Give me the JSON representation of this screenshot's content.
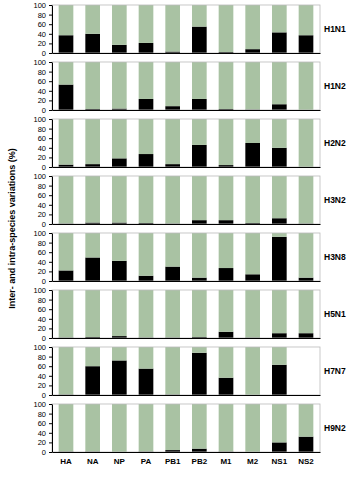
{
  "chart_data": [
    {
      "type": "bar",
      "stacked": true,
      "title": "H1N1",
      "ylabel": "Inter- and intra-species variations (%)",
      "categories": [
        "HA",
        "NA",
        "NP",
        "PA",
        "PB1",
        "PB2",
        "M1",
        "M2",
        "NS1",
        "NS2"
      ],
      "series": [
        {
          "color": "#000000",
          "values": [
            37,
            40,
            17,
            21,
            3,
            55,
            2,
            8,
            43,
            37
          ]
        },
        {
          "color": "#a9c2a3",
          "values": [
            63,
            60,
            83,
            79,
            97,
            45,
            98,
            92,
            57,
            63
          ]
        }
      ],
      "ylim": [
        0,
        100
      ],
      "yticks": [
        0,
        20,
        40,
        60,
        80,
        100
      ],
      "tick_labels": "y"
    },
    {
      "type": "bar",
      "stacked": true,
      "title": "H1N2",
      "categories": [
        "HA",
        "NA",
        "NP",
        "PA",
        "PB1",
        "PB2",
        "M1",
        "M2",
        "NS1",
        "NS2"
      ],
      "series": [
        {
          "color": "#000000",
          "values": [
            53,
            2,
            3,
            23,
            8,
            23,
            2,
            1,
            12,
            0
          ]
        },
        {
          "color": "#a9c2a3",
          "values": [
            47,
            98,
            97,
            77,
            92,
            77,
            98,
            99,
            88,
            100
          ]
        }
      ],
      "ylim": [
        0,
        100
      ],
      "yticks": [
        0,
        20,
        40,
        60,
        80,
        100
      ],
      "tick_labels": "y"
    },
    {
      "type": "bar",
      "stacked": true,
      "title": "H2N2",
      "categories": [
        "HA",
        "NA",
        "NP",
        "PA",
        "PB1",
        "PB2",
        "M1",
        "M2",
        "NS1",
        "NS2"
      ],
      "series": [
        {
          "color": "#000000",
          "values": [
            5,
            6,
            18,
            27,
            6,
            46,
            4,
            50,
            40,
            0
          ]
        },
        {
          "color": "#a9c2a3",
          "values": [
            95,
            94,
            82,
            73,
            94,
            54,
            96,
            50,
            60,
            100
          ]
        }
      ],
      "ylim": [
        0,
        100
      ],
      "yticks": [
        0,
        20,
        40,
        60,
        80,
        100
      ],
      "tick_labels": "y"
    },
    {
      "type": "bar",
      "stacked": true,
      "title": "H3N2",
      "categories": [
        "HA",
        "NA",
        "NP",
        "PA",
        "PB1",
        "PB2",
        "M1",
        "M2",
        "NS1",
        "NS2"
      ],
      "series": [
        {
          "color": "#000000",
          "values": [
            1,
            3,
            3,
            2,
            1,
            8,
            8,
            2,
            12,
            1
          ]
        },
        {
          "color": "#a9c2a3",
          "values": [
            99,
            97,
            97,
            98,
            99,
            92,
            92,
            98,
            88,
            99
          ]
        }
      ],
      "ylim": [
        0,
        100
      ],
      "yticks": [
        0,
        20,
        40,
        60,
        80,
        100
      ],
      "tick_labels": "y"
    },
    {
      "type": "bar",
      "stacked": true,
      "title": "H3N8",
      "categories": [
        "HA",
        "NA",
        "NP",
        "PA",
        "PB1",
        "PB2",
        "M1",
        "M2",
        "NS1",
        "NS2"
      ],
      "series": [
        {
          "color": "#000000",
          "values": [
            22,
            49,
            42,
            11,
            30,
            7,
            27,
            14,
            92,
            7
          ]
        },
        {
          "color": "#a9c2a3",
          "values": [
            78,
            51,
            58,
            89,
            70,
            93,
            73,
            86,
            8,
            93
          ]
        }
      ],
      "ylim": [
        0,
        100
      ],
      "yticks": [
        0,
        20,
        40,
        60,
        80,
        100
      ],
      "tick_labels": "y"
    },
    {
      "type": "bar",
      "stacked": true,
      "title": "H5N1",
      "categories": [
        "HA",
        "NA",
        "NP",
        "PA",
        "PB1",
        "PB2",
        "M1",
        "M2",
        "NS1",
        "NS2"
      ],
      "series": [
        {
          "color": "#000000",
          "values": [
            1,
            2,
            4,
            1,
            1,
            2,
            13,
            1,
            10,
            10
          ]
        },
        {
          "color": "#a9c2a3",
          "values": [
            99,
            98,
            96,
            99,
            99,
            98,
            87,
            99,
            90,
            90
          ]
        }
      ],
      "ylim": [
        0,
        100
      ],
      "yticks": [
        0,
        20,
        40,
        60,
        80,
        100
      ],
      "tick_labels": "y"
    },
    {
      "type": "bar",
      "stacked": true,
      "title": "H7N7",
      "categories": [
        "HA",
        "NA",
        "NP",
        "PA",
        "PB1",
        "PB2",
        "M1",
        "M2",
        "NS1",
        "NS2"
      ],
      "series": [
        {
          "color": "#000000",
          "values": [
            1,
            60,
            72,
            55,
            1,
            88,
            36,
            0,
            63,
            null
          ]
        },
        {
          "color": "#a9c2a3",
          "values": [
            99,
            40,
            28,
            45,
            99,
            12,
            64,
            100,
            37,
            null
          ]
        }
      ],
      "ylim": [
        0,
        100
      ],
      "yticks": [
        0,
        20,
        40,
        60,
        80,
        100
      ],
      "tick_labels": "y"
    },
    {
      "type": "bar",
      "stacked": true,
      "title": "H9N2",
      "categories": [
        "HA",
        "NA",
        "NP",
        "PA",
        "PB1",
        "PB2",
        "M1",
        "M2",
        "NS1",
        "NS2"
      ],
      "series": [
        {
          "color": "#000000",
          "values": [
            1,
            1,
            0,
            1,
            4,
            7,
            1,
            0,
            20,
            32
          ]
        },
        {
          "color": "#a9c2a3",
          "values": [
            99,
            99,
            100,
            99,
            96,
            93,
            99,
            100,
            80,
            68
          ]
        }
      ],
      "ylim": [
        0,
        100
      ],
      "yticks": [
        0,
        20,
        40,
        60,
        80,
        100
      ]
    }
  ]
}
